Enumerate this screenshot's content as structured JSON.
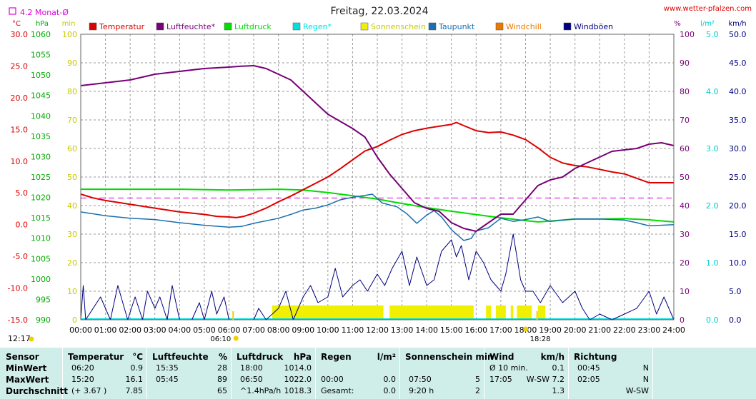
{
  "page": {
    "title": "Freitag, 22.03.2024",
    "site": "www.wetter-pfalzen.com",
    "monat_label": "4.2 Monat-Ø",
    "sunrise": "06:10",
    "sunset": "18:28",
    "now_time": "12:17"
  },
  "colors": {
    "Temperatur": "#dd0000",
    "Luftfeuchte": "#770077",
    "Luftdruck": "#00dd00",
    "Regen": "#00e0e0",
    "Sonnenschein": "#f0f000",
    "Taupunkt": "#1a6fb0",
    "Windchill": "#ee7700",
    "Windboeen": "#000080",
    "Monat": "#dd00dd"
  },
  "chart_data": {
    "type": "line",
    "title": "Freitag, 22.03.2024",
    "x_range": [
      0,
      24
    ],
    "x_ticks": [
      "00:00",
      "01:00",
      "02:00",
      "03:00",
      "04:00",
      "05:00",
      "06:00",
      "07:00",
      "08:00",
      "09:00",
      "10:00",
      "11:00",
      "12:00",
      "13:00",
      "14:00",
      "15:00",
      "16:00",
      "17:00",
      "18:00",
      "19:00",
      "20:00",
      "21:00",
      "22:00",
      "23:00",
      "24:00"
    ],
    "axes": {
      "temp": {
        "unit": "°C",
        "range": [
          -15,
          30
        ],
        "ticks": [
          "30.0",
          "25.0",
          "20.0",
          "15.0",
          "10.0",
          "5.0",
          "0.0",
          "-5.0",
          "-10.0",
          "-15.0"
        ]
      },
      "press": {
        "unit": "hPa",
        "range": [
          990,
          1060
        ],
        "ticks": [
          "1060",
          "1055",
          "1050",
          "1045",
          "1040",
          "1035",
          "1030",
          "1025",
          "1020",
          "1015",
          "1010",
          "1005",
          "1000",
          "995",
          "990"
        ]
      },
      "sun": {
        "unit": "min",
        "range": [
          0,
          100
        ],
        "ticks": [
          "100",
          "90",
          "80",
          "70",
          "60",
          "50",
          "40",
          "30",
          "20",
          "10",
          "0"
        ]
      },
      "hum": {
        "unit": "%",
        "range": [
          0,
          100
        ],
        "ticks": [
          "100",
          "90",
          "80",
          "70",
          "60",
          "50",
          "40",
          "30",
          "20",
          "10",
          "0"
        ]
      },
      "rain": {
        "unit": "l/m²",
        "range": [
          0,
          5
        ],
        "ticks": [
          "5.0",
          "4.0",
          "3.0",
          "2.0",
          "1.0",
          "0.0"
        ]
      },
      "wind": {
        "unit": "km/h",
        "range": [
          0,
          50
        ],
        "ticks": [
          "50.0",
          "45.0",
          "40.0",
          "35.0",
          "30.0",
          "25.0",
          "20.0",
          "15.0",
          "10.0",
          "5.0",
          "0.0"
        ]
      }
    },
    "legend": [
      "Temperatur",
      "Luftfeuchte*",
      "Luftdruck",
      "Regen*",
      "Sonnenschein",
      "Taupunkt",
      "Windchill",
      "Windböen"
    ],
    "monthly_avg_temp": 4.2,
    "series": [
      {
        "name": "Temperatur",
        "axis": "temp",
        "points": [
          [
            0,
            4.8
          ],
          [
            0.5,
            4.2
          ],
          [
            1,
            3.8
          ],
          [
            2,
            3.2
          ],
          [
            3,
            2.6
          ],
          [
            4,
            2.0
          ],
          [
            5,
            1.6
          ],
          [
            5.5,
            1.3
          ],
          [
            6,
            1.2
          ],
          [
            6.3,
            1.1
          ],
          [
            6.6,
            1.3
          ],
          [
            7,
            1.8
          ],
          [
            7.5,
            2.6
          ],
          [
            8,
            3.6
          ],
          [
            8.5,
            4.5
          ],
          [
            9,
            5.5
          ],
          [
            9.5,
            6.5
          ],
          [
            10,
            7.5
          ],
          [
            10.5,
            8.8
          ],
          [
            11,
            10.2
          ],
          [
            11.5,
            11.6
          ],
          [
            12,
            12.3
          ],
          [
            12.5,
            13.3
          ],
          [
            13,
            14.2
          ],
          [
            13.5,
            14.8
          ],
          [
            14,
            15.2
          ],
          [
            14.5,
            15.5
          ],
          [
            15,
            15.8
          ],
          [
            15.2,
            16.1
          ],
          [
            15.5,
            15.6
          ],
          [
            16,
            14.8
          ],
          [
            16.5,
            14.5
          ],
          [
            17,
            14.6
          ],
          [
            17.5,
            14.1
          ],
          [
            18,
            13.4
          ],
          [
            18.5,
            12.1
          ],
          [
            19,
            10.6
          ],
          [
            19.5,
            9.7
          ],
          [
            20,
            9.3
          ],
          [
            20.5,
            9.1
          ],
          [
            21,
            8.7
          ],
          [
            21.5,
            8.3
          ],
          [
            22,
            8.0
          ],
          [
            22.5,
            7.3
          ],
          [
            23,
            6.6
          ],
          [
            23.5,
            6.6
          ],
          [
            24,
            6.6
          ]
        ]
      },
      {
        "name": "Luftfeuchte*",
        "axis": "hum",
        "points": [
          [
            0,
            82
          ],
          [
            1,
            83
          ],
          [
            2,
            84
          ],
          [
            3,
            86
          ],
          [
            4,
            87
          ],
          [
            5,
            88
          ],
          [
            6,
            88.5
          ],
          [
            6.5,
            88.8
          ],
          [
            7,
            89
          ],
          [
            7.5,
            88
          ],
          [
            8,
            86
          ],
          [
            8.5,
            84
          ],
          [
            9,
            80
          ],
          [
            9.5,
            76
          ],
          [
            10,
            72
          ],
          [
            11,
            67
          ],
          [
            11.5,
            64
          ],
          [
            12,
            57
          ],
          [
            12.5,
            51
          ],
          [
            13,
            46
          ],
          [
            13.5,
            41
          ],
          [
            14,
            39
          ],
          [
            14.5,
            38
          ],
          [
            15,
            34
          ],
          [
            15.5,
            32
          ],
          [
            16,
            31
          ],
          [
            16.5,
            34
          ],
          [
            17,
            37
          ],
          [
            17.5,
            37
          ],
          [
            18,
            42
          ],
          [
            18.5,
            47
          ],
          [
            19,
            49
          ],
          [
            19.5,
            50
          ],
          [
            20,
            53
          ],
          [
            20.5,
            55
          ],
          [
            21,
            57
          ],
          [
            21.5,
            59
          ],
          [
            22,
            59.5
          ],
          [
            22.5,
            60
          ],
          [
            23,
            61.5
          ],
          [
            23.5,
            62
          ],
          [
            24,
            61
          ]
        ]
      },
      {
        "name": "Luftdruck",
        "axis": "press",
        "points": [
          [
            0,
            1022.0
          ],
          [
            4,
            1022.0
          ],
          [
            6,
            1021.8
          ],
          [
            7,
            1021.9
          ],
          [
            8,
            1022.0
          ],
          [
            9,
            1021.8
          ],
          [
            10,
            1021.2
          ],
          [
            11,
            1020.4
          ],
          [
            12,
            1019.6
          ],
          [
            13,
            1018.5
          ],
          [
            14,
            1017.5
          ],
          [
            15,
            1016.6
          ],
          [
            16,
            1015.8
          ],
          [
            17,
            1015.0
          ],
          [
            18,
            1014.3
          ],
          [
            18.5,
            1014.0
          ],
          [
            19,
            1014.2
          ],
          [
            20,
            1014.7
          ],
          [
            21,
            1014.7
          ],
          [
            22,
            1014.8
          ],
          [
            23,
            1014.5
          ],
          [
            24,
            1014.0
          ]
        ]
      },
      {
        "name": "Taupunkt",
        "axis": "temp",
        "points": [
          [
            0,
            2.0
          ],
          [
            1,
            1.4
          ],
          [
            2,
            1.0
          ],
          [
            3,
            0.8
          ],
          [
            4,
            0.3
          ],
          [
            5,
            -0.1
          ],
          [
            6,
            -0.4
          ],
          [
            6.5,
            -0.3
          ],
          [
            7,
            0.2
          ],
          [
            8,
            1.0
          ],
          [
            8.5,
            1.6
          ],
          [
            9,
            2.3
          ],
          [
            9.5,
            2.6
          ],
          [
            10,
            3.1
          ],
          [
            10.5,
            3.9
          ],
          [
            11,
            4.3
          ],
          [
            11.5,
            4.6
          ],
          [
            11.8,
            4.8
          ],
          [
            12.2,
            3.4
          ],
          [
            12.8,
            2.8
          ],
          [
            13.2,
            1.7
          ],
          [
            13.6,
            0.2
          ],
          [
            14,
            1.5
          ],
          [
            14.3,
            2.2
          ],
          [
            14.6,
            1.2
          ],
          [
            15,
            -0.8
          ],
          [
            15.5,
            -2.5
          ],
          [
            15.8,
            -2.2
          ],
          [
            16,
            -1.0
          ],
          [
            16.5,
            -0.5
          ],
          [
            17,
            1.0
          ],
          [
            17.5,
            0.5
          ],
          [
            18,
            0.8
          ],
          [
            18.5,
            1.2
          ],
          [
            19,
            0.5
          ],
          [
            19.5,
            0.7
          ],
          [
            20,
            0.9
          ],
          [
            21,
            0.9
          ],
          [
            22,
            0.7
          ],
          [
            22.5,
            0.3
          ],
          [
            23,
            -0.2
          ],
          [
            24,
            0.0
          ]
        ]
      },
      {
        "name": "Windböen",
        "axis": "wind",
        "points": [
          [
            0,
            0
          ],
          [
            0.1,
            6
          ],
          [
            0.2,
            0
          ],
          [
            0.8,
            4
          ],
          [
            1.2,
            0
          ],
          [
            1.5,
            6
          ],
          [
            1.7,
            3
          ],
          [
            1.9,
            0
          ],
          [
            2.2,
            4
          ],
          [
            2.5,
            0
          ],
          [
            2.7,
            5
          ],
          [
            3,
            2
          ],
          [
            3.2,
            4
          ],
          [
            3.5,
            0
          ],
          [
            3.7,
            6
          ],
          [
            4,
            0
          ],
          [
            4.5,
            0
          ],
          [
            4.8,
            3
          ],
          [
            5,
            0
          ],
          [
            5.3,
            5
          ],
          [
            5.5,
            1
          ],
          [
            5.8,
            4
          ],
          [
            6,
            0
          ],
          [
            6.5,
            0
          ],
          [
            7,
            0
          ],
          [
            7.2,
            2
          ],
          [
            7.5,
            0
          ],
          [
            8,
            2
          ],
          [
            8.3,
            5
          ],
          [
            8.6,
            0
          ],
          [
            9,
            4
          ],
          [
            9.3,
            6
          ],
          [
            9.6,
            3
          ],
          [
            10,
            4
          ],
          [
            10.3,
            9
          ],
          [
            10.6,
            4
          ],
          [
            11,
            6
          ],
          [
            11.3,
            7
          ],
          [
            11.6,
            5
          ],
          [
            12,
            8
          ],
          [
            12.3,
            6
          ],
          [
            12.6,
            9
          ],
          [
            13,
            12
          ],
          [
            13.3,
            6
          ],
          [
            13.6,
            11
          ],
          [
            14,
            6
          ],
          [
            14.3,
            7
          ],
          [
            14.6,
            12
          ],
          [
            15,
            14
          ],
          [
            15.2,
            11
          ],
          [
            15.4,
            13
          ],
          [
            15.7,
            7
          ],
          [
            16,
            12
          ],
          [
            16.3,
            10
          ],
          [
            16.6,
            7
          ],
          [
            17,
            5
          ],
          [
            17.2,
            8
          ],
          [
            17.5,
            15
          ],
          [
            17.8,
            7
          ],
          [
            18,
            5
          ],
          [
            18.3,
            5
          ],
          [
            18.6,
            3
          ],
          [
            19,
            6
          ],
          [
            19.5,
            3
          ],
          [
            20,
            5
          ],
          [
            20.3,
            2
          ],
          [
            20.6,
            0
          ],
          [
            21,
            1
          ],
          [
            21.5,
            0
          ],
          [
            22,
            1
          ],
          [
            22.5,
            2
          ],
          [
            23,
            5
          ],
          [
            23.3,
            1
          ],
          [
            23.6,
            4
          ],
          [
            24,
            0
          ]
        ]
      },
      {
        "name": "Sonnenschein",
        "axis": "sun",
        "bars": [
          [
            7.75,
            12.25
          ],
          [
            12.5,
            15.9
          ],
          [
            16.4,
            16.6
          ],
          [
            16.8,
            17.2
          ],
          [
            17.4,
            17.5
          ],
          [
            17.65,
            18.25
          ],
          [
            18.5,
            18.8
          ]
        ],
        "value": 5
      }
    ]
  },
  "table": {
    "headers": {
      "sensor": "Sensor",
      "temp": "Temperatur",
      "temp_unit": "°C",
      "hum": "Luftfeuchte",
      "hum_unit": "%",
      "press": "Luftdruck",
      "press_unit": "hPa",
      "rain": "Regen",
      "rain_unit": "l/m²",
      "sun": "Sonnenschein min",
      "wind": "Wind",
      "wind_unit": "km/h",
      "dir": "Richtung"
    },
    "rows": [
      {
        "label": "MinWert",
        "temp_time": "06:20",
        "temp_val": "0.9",
        "hum_time": "15:35",
        "hum_val": "28",
        "press_time": "18:00",
        "press_val": "1014.0",
        "rain_time": "",
        "rain_val": "",
        "sun_time": "",
        "sun_val": "",
        "wind_time": "Ø 10 min.",
        "wind_val": "0.1",
        "dir_time": "00:45",
        "dir_val": "N"
      },
      {
        "label": "MaxWert",
        "temp_time": "15:20",
        "temp_val": "16.1",
        "hum_time": "05:45",
        "hum_val": "89",
        "press_time": "06:50",
        "press_val": "1022.0",
        "rain_time": "00:00",
        "rain_val": "0.0",
        "sun_time": "07:50",
        "sun_val": "5",
        "wind_time": "17:05",
        "wind_val": "W-SW 7.2",
        "dir_time": "02:05",
        "dir_val": "N"
      },
      {
        "label": "Durchschnitt",
        "temp_time": "(+ 3.67 )",
        "temp_val": "7.85",
        "hum_time": "",
        "hum_val": "65",
        "press_time": "^1.4hPa/h",
        "press_val": "1018.3",
        "rain_time": "Gesamt:",
        "rain_val": "0.0",
        "sun_time": "9:20 h",
        "sun_val": "2",
        "wind_time": "",
        "wind_val": "1.3",
        "dir_time": "",
        "dir_val": "W-SW"
      }
    ]
  }
}
